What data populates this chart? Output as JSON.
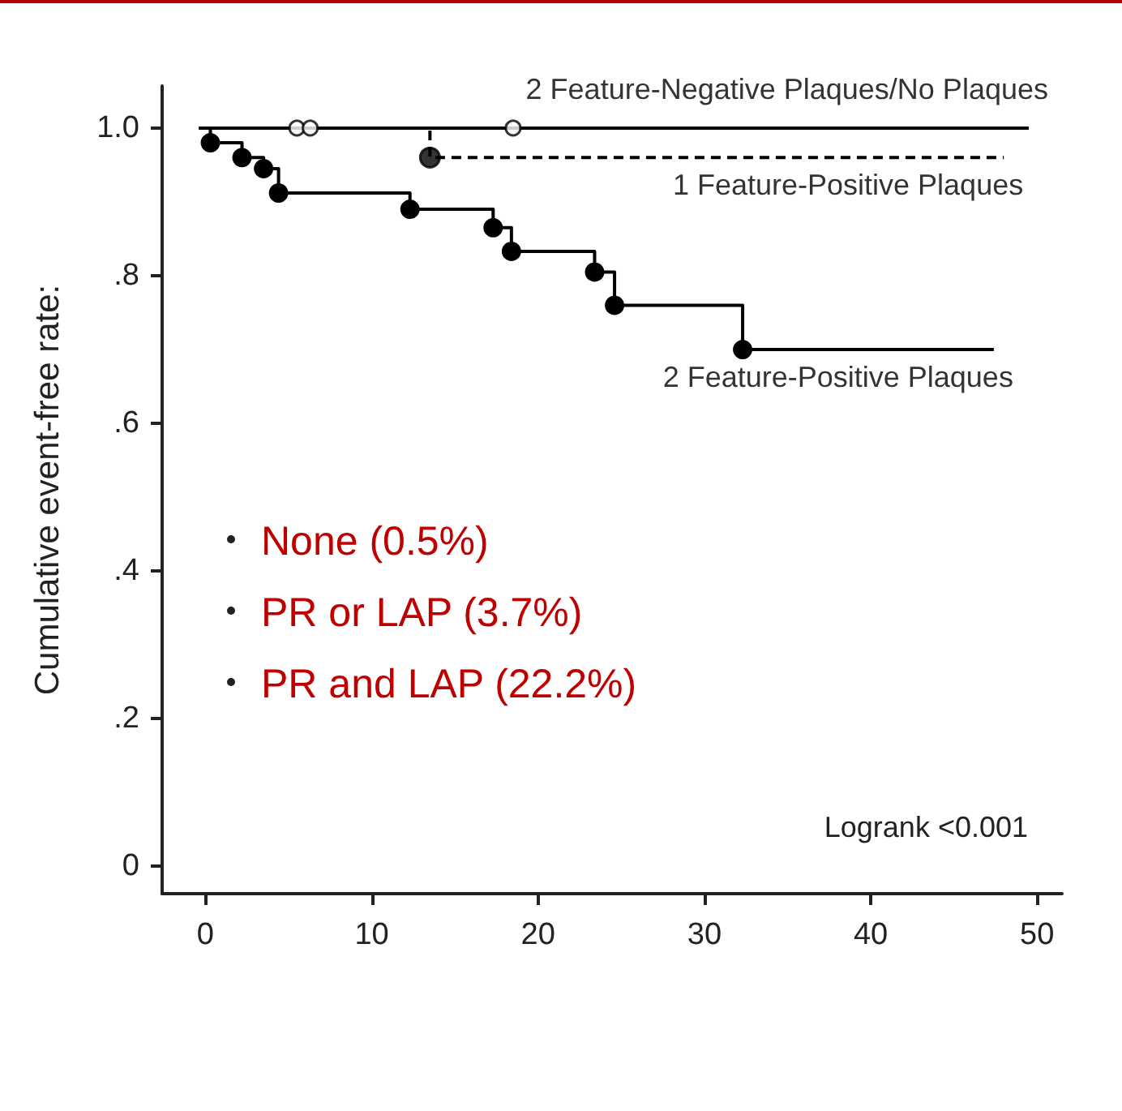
{
  "chart_data": {
    "type": "step",
    "ylabel": "Cumulative event-free rate:",
    "xlim": [
      -2.6,
      51.5
    ],
    "xticks": [
      0,
      10,
      20,
      30,
      40,
      50
    ],
    "ylim": [
      -0.037,
      1.057
    ],
    "yticks": [
      {
        "value": 0,
        "label": "0"
      },
      {
        "value": 0.2,
        "label": ".2"
      },
      {
        "value": 0.4,
        "label": ".4"
      },
      {
        "value": 0.6,
        "label": ".6"
      },
      {
        "value": 0.8,
        "label": ".8"
      },
      {
        "value": 1,
        "label": "1.0"
      }
    ],
    "grid": false,
    "legend": false,
    "series": [
      {
        "name": "2 Feature-Negative Plaques/No Plaques",
        "color": "#000000",
        "line_style": "solid",
        "x": [
          0,
          49.5
        ],
        "values": [
          1,
          1
        ]
      },
      {
        "name": "1 Feature-Positive Plaques",
        "color": "#000000",
        "line_style": "dashed",
        "x": [
          0,
          13.5,
          48
        ],
        "values": [
          1,
          0.96,
          0.96
        ]
      },
      {
        "name": "2 Feature-Positive Plaques",
        "color": "#000000",
        "line_style": "solid",
        "marker": "circle",
        "x": [
          -0.4,
          0.3,
          2.2,
          3.5,
          4.4,
          12.3,
          17.3,
          18.4,
          23.4,
          24.6,
          32.3,
          47.4
        ],
        "values": [
          1,
          0.98,
          0.96,
          0.945,
          0.912,
          0.89,
          0.865,
          0.833,
          0.805,
          0.76,
          0.7,
          0.7
        ]
      },
      {
        "type": "scatter",
        "color": "#000000",
        "marker": "circle",
        "x": [
          13.5
        ],
        "values": [
          0.96
        ]
      },
      {
        "type": "scatter",
        "color": "#ffffff",
        "marker": "circle",
        "x": [
          5.5,
          6.3,
          18.5
        ],
        "values": [
          1.0,
          1.0,
          1.0
        ]
      }
    ],
    "annotations": [
      "None (0.5%)",
      "PR or LAP (3.7%)",
      "PR and LAP (22.2%)",
      "Logrank <0.001"
    ]
  }
}
